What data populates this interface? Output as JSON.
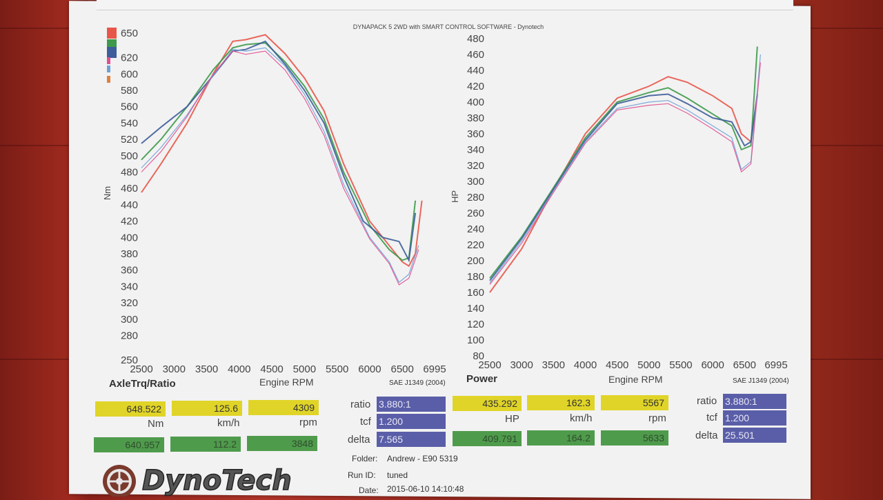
{
  "header": "DYNAPACK 5 2WD with SMART CONTROL SOFTWARE - Dynotech",
  "legend_colors": [
    "#e8564a",
    "#3d9a4a",
    "#3d5e9a",
    "#e05090",
    "#6ea0d8",
    "#e08040"
  ],
  "chart_data": [
    {
      "type": "line",
      "title": "AxleTrq/Ratio",
      "ylabel": "Nm",
      "xlabel": "Engine RPM",
      "standard": "SAE J1349 (2004)",
      "xlim": [
        2500,
        6995
      ],
      "ylim": [
        250,
        650
      ],
      "x_ticks": [
        "2500",
        "3000",
        "3500",
        "4000",
        "4500",
        "5000",
        "5500",
        "6000",
        "6500",
        "6995"
      ],
      "y_ticks": [
        "650",
        "620",
        "600",
        "580",
        "560",
        "540",
        "520",
        "500",
        "480",
        "460",
        "440",
        "420",
        "400",
        "380",
        "360",
        "340",
        "320",
        "300",
        "280",
        "250"
      ],
      "series": [
        {
          "color": "#e8564a",
          "points": [
            [
              2500,
              455
            ],
            [
              2800,
              490
            ],
            [
              3200,
              540
            ],
            [
              3600,
              600
            ],
            [
              3900,
              640
            ],
            [
              4100,
              642
            ],
            [
              4400,
              648
            ],
            [
              4700,
              625
            ],
            [
              5000,
              595
            ],
            [
              5300,
              555
            ],
            [
              5600,
              490
            ],
            [
              6000,
              420
            ],
            [
              6300,
              390
            ],
            [
              6500,
              370
            ],
            [
              6600,
              365
            ],
            [
              6700,
              380
            ],
            [
              6800,
              445
            ]
          ]
        },
        {
          "color": "#3d9a4a",
          "points": [
            [
              2500,
              495
            ],
            [
              2800,
              520
            ],
            [
              3200,
              560
            ],
            [
              3600,
              605
            ],
            [
              3900,
              632
            ],
            [
              4100,
              636
            ],
            [
              4400,
              638
            ],
            [
              4700,
              615
            ],
            [
              5000,
              585
            ],
            [
              5300,
              545
            ],
            [
              5600,
              480
            ],
            [
              6000,
              415
            ],
            [
              6300,
              385
            ],
            [
              6500,
              372
            ],
            [
              6600,
              375
            ],
            [
              6700,
              445
            ]
          ]
        },
        {
          "color": "#3d5e9a",
          "points": [
            [
              2500,
              515
            ],
            [
              2800,
              535
            ],
            [
              3200,
              560
            ],
            [
              3600,
              598
            ],
            [
              3900,
              628
            ],
            [
              4100,
              630
            ],
            [
              4400,
              640
            ],
            [
              4700,
              612
            ],
            [
              5000,
              580
            ],
            [
              5300,
              540
            ],
            [
              5600,
              475
            ],
            [
              5900,
              420
            ],
            [
              6200,
              400
            ],
            [
              6450,
              395
            ],
            [
              6600,
              372
            ],
            [
              6700,
              430
            ]
          ]
        },
        {
          "color": "#6ea0d8",
          "points": [
            [
              2500,
              485
            ],
            [
              2800,
              510
            ],
            [
              3200,
              550
            ],
            [
              3600,
              598
            ],
            [
              3900,
              630
            ],
            [
              4100,
              628
            ],
            [
              4400,
              632
            ],
            [
              4700,
              610
            ],
            [
              5000,
              575
            ],
            [
              5300,
              530
            ],
            [
              5600,
              465
            ],
            [
              6000,
              400
            ],
            [
              6300,
              370
            ],
            [
              6450,
              345
            ],
            [
              6600,
              355
            ],
            [
              6750,
              390
            ]
          ]
        },
        {
          "color": "#e05090",
          "points": [
            [
              2500,
              480
            ],
            [
              2800,
              505
            ],
            [
              3200,
              548
            ],
            [
              3600,
              600
            ],
            [
              3900,
              628
            ],
            [
              4100,
              624
            ],
            [
              4400,
              628
            ],
            [
              4700,
              605
            ],
            [
              5000,
              570
            ],
            [
              5300,
              525
            ],
            [
              5600,
              460
            ],
            [
              6000,
              398
            ],
            [
              6300,
              368
            ],
            [
              6450,
              342
            ],
            [
              6600,
              350
            ],
            [
              6750,
              385
            ]
          ]
        }
      ]
    },
    {
      "type": "line",
      "title": "Power",
      "ylabel": "HP",
      "xlabel": "Engine RPM",
      "standard": "SAE J1349 (2004)",
      "xlim": [
        2500,
        6995
      ],
      "ylim": [
        80,
        480
      ],
      "x_ticks": [
        "2500",
        "3000",
        "3500",
        "4000",
        "4500",
        "5000",
        "5500",
        "6000",
        "6500",
        "6995"
      ],
      "y_ticks": [
        "480",
        "460",
        "440",
        "420",
        "400",
        "380",
        "360",
        "340",
        "320",
        "300",
        "280",
        "260",
        "240",
        "220",
        "200",
        "180",
        "160",
        "140",
        "120",
        "100",
        "80"
      ],
      "series": [
        {
          "color": "#e8564a",
          "points": [
            [
              2500,
              160
            ],
            [
              3000,
              215
            ],
            [
              3500,
              290
            ],
            [
              4000,
              360
            ],
            [
              4500,
              405
            ],
            [
              5000,
              420
            ],
            [
              5300,
              432
            ],
            [
              5600,
              425
            ],
            [
              6000,
              408
            ],
            [
              6300,
              392
            ],
            [
              6450,
              360
            ],
            [
              6600,
              350
            ],
            [
              6700,
              410
            ]
          ]
        },
        {
          "color": "#3d9a4a",
          "points": [
            [
              2500,
              178
            ],
            [
              3000,
              230
            ],
            [
              3500,
              292
            ],
            [
              4000,
              355
            ],
            [
              4500,
              400
            ],
            [
              5000,
              412
            ],
            [
              5300,
              418
            ],
            [
              5600,
              405
            ],
            [
              6000,
              385
            ],
            [
              6300,
              370
            ],
            [
              6450,
              340
            ],
            [
              6600,
              345
            ],
            [
              6700,
              470
            ]
          ]
        },
        {
          "color": "#3d5e9a",
          "points": [
            [
              2500,
              175
            ],
            [
              3000,
              228
            ],
            [
              3500,
              290
            ],
            [
              4000,
              352
            ],
            [
              4500,
              398
            ],
            [
              5000,
              408
            ],
            [
              5300,
              410
            ],
            [
              5600,
              398
            ],
            [
              6000,
              380
            ],
            [
              6300,
              375
            ],
            [
              6500,
              345
            ],
            [
              6600,
              350
            ],
            [
              6700,
              410
            ]
          ]
        },
        {
          "color": "#6ea0d8",
          "points": [
            [
              2500,
              172
            ],
            [
              3000,
              225
            ],
            [
              3500,
              288
            ],
            [
              4000,
              350
            ],
            [
              4500,
              392
            ],
            [
              5000,
              400
            ],
            [
              5300,
              402
            ],
            [
              5600,
              390
            ],
            [
              6000,
              370
            ],
            [
              6300,
              355
            ],
            [
              6450,
              315
            ],
            [
              6600,
              325
            ],
            [
              6750,
              460
            ]
          ]
        },
        {
          "color": "#e05090",
          "points": [
            [
              2500,
              170
            ],
            [
              3000,
              222
            ],
            [
              3500,
              286
            ],
            [
              4000,
              348
            ],
            [
              4500,
              390
            ],
            [
              5000,
              396
            ],
            [
              5300,
              398
            ],
            [
              5600,
              386
            ],
            [
              6000,
              366
            ],
            [
              6300,
              350
            ],
            [
              6450,
              312
            ],
            [
              6600,
              322
            ],
            [
              6750,
              450
            ]
          ]
        }
      ]
    }
  ],
  "left_panel": {
    "title": "AxleTrq/Ratio",
    "xlabel": "Engine RPM",
    "standard": "SAE J1349 (2004)",
    "row1": [
      "648.522",
      "125.6",
      "4309"
    ],
    "units": [
      "Nm",
      "km/h",
      "rpm"
    ],
    "row2": [
      "640.957",
      "112.2",
      "3848"
    ],
    "ratio_label": "ratio",
    "ratio": "3.880:1",
    "tcf_label": "tcf",
    "tcf": "1.200",
    "delta_label": "delta",
    "delta": "7.565"
  },
  "right_panel": {
    "title": "Power",
    "xlabel": "Engine RPM",
    "standard": "SAE J1349 (2004)",
    "row1": [
      "435.292",
      "162.3",
      "5567"
    ],
    "units": [
      "HP",
      "km/h",
      "rpm"
    ],
    "row2": [
      "409.791",
      "164.2",
      "5633"
    ],
    "ratio_label": "ratio",
    "ratio": "3.880:1",
    "tcf_label": "tcf",
    "tcf": "1.200",
    "delta_label": "delta",
    "delta": "25.501"
  },
  "footer": {
    "folder_label": "Folder:",
    "folder": "Andrew - E90 5319",
    "run_label": "Run ID:",
    "run": "tuned",
    "date_label": "Date:",
    "date": "2015-06-10 14:10:48"
  },
  "logo_text": "DynoTech"
}
